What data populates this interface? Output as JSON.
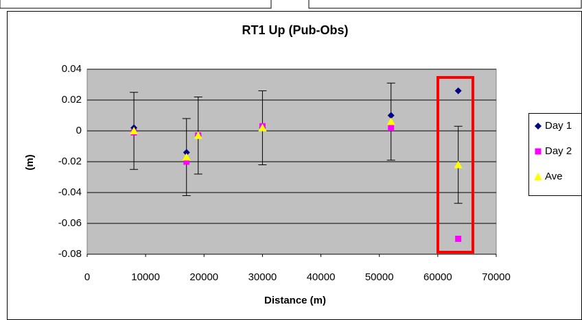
{
  "chart_data": {
    "type": "scatter",
    "title": "RT1 Up (Pub-Obs)",
    "x_label": "Distance (m)",
    "y_label": "(m)",
    "xlim": [
      0,
      70000
    ],
    "xticks": [
      0,
      10000,
      20000,
      30000,
      40000,
      50000,
      60000,
      70000
    ],
    "ylim": [
      -0.08,
      0.04
    ],
    "yticks": [
      -0.08,
      -0.06,
      -0.04,
      -0.02,
      0,
      0.02,
      0.04
    ],
    "grid": true,
    "legend": "right",
    "series": [
      {
        "name": "Day 1",
        "color": "#000080",
        "marker": "diamond",
        "x": [
          8000,
          17000,
          19000,
          30000,
          52000,
          63500
        ],
        "values": [
          0.002,
          -0.014,
          -0.003,
          0.002,
          0.01,
          0.026
        ]
      },
      {
        "name": "Day 2",
        "color": "#ff00ff",
        "marker": "square",
        "x": [
          8000,
          17000,
          19000,
          30000,
          52000,
          63500
        ],
        "values": [
          -0.001,
          -0.02,
          -0.003,
          0.003,
          0.002,
          -0.07
        ]
      },
      {
        "name": "Ave",
        "color": "#ffff00",
        "marker": "triangle",
        "x": [
          8000,
          17000,
          19000,
          30000,
          52000,
          63500
        ],
        "values": [
          0.0,
          -0.017,
          -0.003,
          0.002,
          0.006,
          -0.022
        ],
        "errors": [
          0.025,
          0.025,
          0.025,
          0.024,
          0.025,
          0.025
        ]
      }
    ]
  }
}
